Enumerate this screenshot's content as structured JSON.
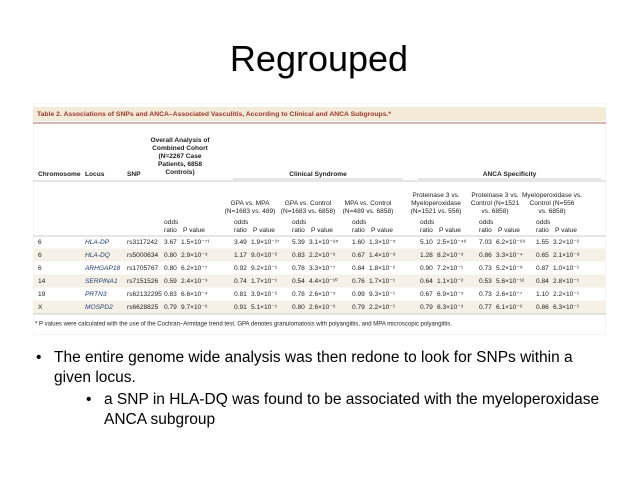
{
  "slide": {
    "title": "Regrouped"
  },
  "table": {
    "title": "Table 2. Associations of SNPs and ANCA–Associated Vasculitis, According to Clinical and ANCA Subgroups.*",
    "columns": [
      "Chromosome",
      "Locus",
      "SNP"
    ],
    "overall": [
      "Overall Analysis of",
      "Combined Cohort",
      "(N=2267 Case",
      "Patients, 6858",
      "Controls)"
    ],
    "groups": [
      {
        "label": "Clinical Syndrome",
        "comparisons": [
          [
            "GPA vs. MPA",
            "(N=1683 vs. 489)"
          ],
          [
            "GPA vs. Control",
            "(N=1683 vs. 6858)"
          ],
          [
            "MPA vs. Control",
            "(N=489 vs. 6858)"
          ]
        ]
      },
      {
        "label": "ANCA Specificity",
        "comparisons": [
          [
            "Proteinase 3 vs.",
            "Myeloperoxidase",
            "(N=1521 vs. 556)"
          ],
          [
            "Proteinase 3 vs.",
            "Control (N=1521",
            "vs. 6858)"
          ],
          [
            "Myeloperoxidase vs.",
            "Control (N=556",
            "vs. 6858)"
          ]
        ]
      }
    ],
    "subheader": {
      "odds_ratio": [
        "odds",
        "ratio"
      ],
      "p_value": "P value"
    },
    "rows": [
      [
        "6",
        "HLA-DP",
        "rs3117242",
        "3.67",
        "1.5×10⁻⁷¹",
        "3.49",
        "1.9×10⁻²⁷",
        "5.39",
        "3.1×10⁻⁸⁵",
        "1.60",
        "1.3×10⁻⁵",
        "5.10",
        "2.5×10⁻⁴⁶",
        "7.03",
        "6.2×10⁻⁸⁹",
        "1.55",
        "3.2×10⁻²"
      ],
      [
        "6",
        "HLA-DQ",
        "rs5000634",
        "0.80",
        "2.9×10⁻⁹",
        "1.17",
        "9.0×10⁻²",
        "0.83",
        "2.2×10⁻⁶",
        "0.67",
        "1.4×10⁻⁸",
        "1.28",
        "8.2×10⁻³",
        "0.86",
        "3.3×10⁻⁴",
        "0.65",
        "2.1×10⁻⁸"
      ],
      [
        "6",
        "ARHGAP18",
        "rs1705767",
        "0.80",
        "6.2×10⁻⁷",
        "0.92",
        "9.2×10⁻¹",
        "0.78",
        "3.3×10⁻⁷",
        "0.84",
        "1.8×10⁻²",
        "0.90",
        "7.2×10⁻¹",
        "0.73",
        "5.2×10⁻⁸",
        "0.87",
        "1.0×10⁻¹"
      ],
      [
        "14",
        "SERPINA1",
        "rs7151526",
        "0.59",
        "2.4×10⁻⁹",
        "0.74",
        "1.7×10⁻¹",
        "0.54",
        "4.4×10⁻¹⁰",
        "0.76",
        "1.7×10⁻¹",
        "0.64",
        "1.1×10⁻²",
        "0.53",
        "5.6×10⁻¹²",
        "0.84",
        "2.8×10⁻¹"
      ],
      [
        "19",
        "PRTN3",
        "rs62132295",
        "0.83",
        "6.6×10⁻⁴",
        "0.81",
        "3.9×10⁻²",
        "0.78",
        "2.6×10⁻⁵",
        "0.99",
        "9.3×10⁻¹",
        "0.67",
        "6.9×10⁻⁵",
        "0.73",
        "2.6×10⁻⁷",
        "1.10",
        "2.2×10⁻¹"
      ],
      [
        "X",
        "MOSPD2",
        "rs6628825",
        "0.79",
        "9.7×10⁻⁶",
        "0.91",
        "5.1×10⁻¹",
        "0.80",
        "2.6×10⁻⁶",
        "0.79",
        "2.2×10⁻¹",
        "0.79",
        "8.3×10⁻³",
        "0.77",
        "6.1×10⁻⁶",
        "0.86",
        "6.3×10⁻¹"
      ]
    ],
    "footnote": "* P values were calculated with the use of the Cochran–Armitage trend test. GPA denotes granulomatosis with polyangiitis, and MPA microscopic polyangiitis."
  },
  "bullets": [
    {
      "text": "The entire genome wide analysis was then redone to look for SNPs within a given locus.",
      "children": [
        "a SNP in HLA-DQ was found to be associated with the myeloperoxidase ANCA subgroup"
      ]
    }
  ]
}
